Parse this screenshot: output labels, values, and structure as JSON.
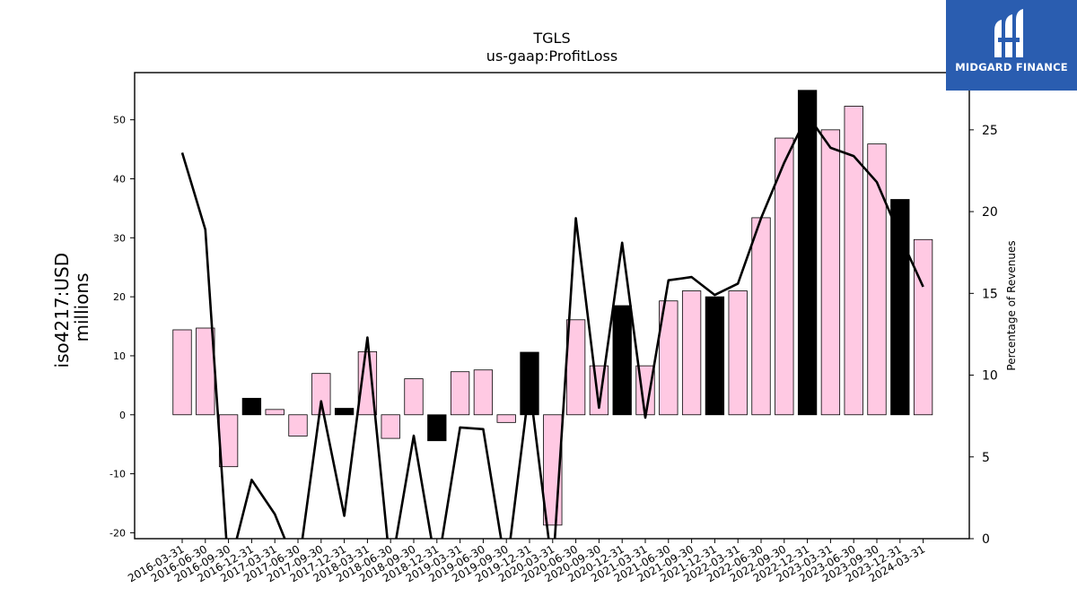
{
  "chart_data": {
    "type": "bar",
    "title": "TGLS",
    "subtitle": "us-gaap:ProfitLoss",
    "ylabel": "iso4217:USD\nmillions",
    "ylabel_lines": [
      "iso4217:USD",
      "millions"
    ],
    "y2label": "Percentage of Revenues",
    "ylim": [
      -21,
      58
    ],
    "y2lim": [
      0,
      28.5
    ],
    "yticks": [
      -20,
      -10,
      0,
      10,
      20,
      30,
      40,
      50
    ],
    "y2ticks": [
      0,
      5,
      10,
      15,
      20,
      25
    ],
    "categories": [
      "2016-03-31",
      "2016-06-30",
      "2016-09-30",
      "2016-12-31",
      "2017-03-31",
      "2017-06-30",
      "2017-09-30",
      "2017-12-31",
      "2018-03-31",
      "2018-06-30",
      "2018-09-30",
      "2018-12-31",
      "2019-03-31",
      "2019-06-30",
      "2019-09-30",
      "2019-12-31",
      "2020-03-31",
      "2020-06-30",
      "2020-09-30",
      "2020-12-31",
      "2021-03-31",
      "2021-06-30",
      "2021-09-30",
      "2021-12-31",
      "2022-03-31",
      "2022-06-30",
      "2022-09-30",
      "2022-12-31",
      "2023-03-31",
      "2023-06-30",
      "2023-09-30",
      "2023-12-31",
      "2024-03-31"
    ],
    "series": [
      {
        "kind": "bar",
        "values": [
          14.4,
          14.7,
          -8.8,
          2.8,
          0.9,
          -3.6,
          7.0,
          1.1,
          10.7,
          -4.0,
          6.1,
          -4.4,
          7.3,
          7.6,
          -1.3,
          10.6,
          -18.7,
          16.1,
          8.3,
          18.5,
          8.3,
          19.3,
          21.0,
          20.0,
          21.0,
          33.4,
          46.9,
          55.0,
          48.3,
          52.3,
          45.9,
          36.5,
          29.7
        ],
        "colors": [
          "#ffc9e3",
          "#ffc9e3",
          "#ffc9e3",
          "#000000",
          "#ffc9e3",
          "#ffc9e3",
          "#ffc9e3",
          "#000000",
          "#ffc9e3",
          "#ffc9e3",
          "#ffc9e3",
          "#000000",
          "#ffc9e3",
          "#ffc9e3",
          "#ffc9e3",
          "#000000",
          "#ffc9e3",
          "#ffc9e3",
          "#ffc9e3",
          "#000000",
          "#ffc9e3",
          "#ffc9e3",
          "#ffc9e3",
          "#000000",
          "#ffc9e3",
          "#ffc9e3",
          "#ffc9e3",
          "#000000",
          "#ffc9e3",
          "#ffc9e3",
          "#ffc9e3",
          "#000000",
          "#ffc9e3"
        ]
      },
      {
        "kind": "line",
        "axis": "right",
        "values": [
          23.6,
          18.9,
          -2.0,
          3.6,
          1.5,
          -2.0,
          8.4,
          1.4,
          12.3,
          -2.0,
          6.3,
          -2.0,
          6.8,
          6.7,
          -2.0,
          9.4,
          -2.0,
          19.6,
          8.0,
          18.1,
          7.4,
          15.8,
          16.0,
          14.9,
          15.6,
          19.6,
          23.0,
          25.9,
          23.9,
          23.4,
          21.8,
          18.5,
          15.4
        ]
      }
    ]
  },
  "logo": {
    "text": "MIDGARD FINANCE"
  }
}
